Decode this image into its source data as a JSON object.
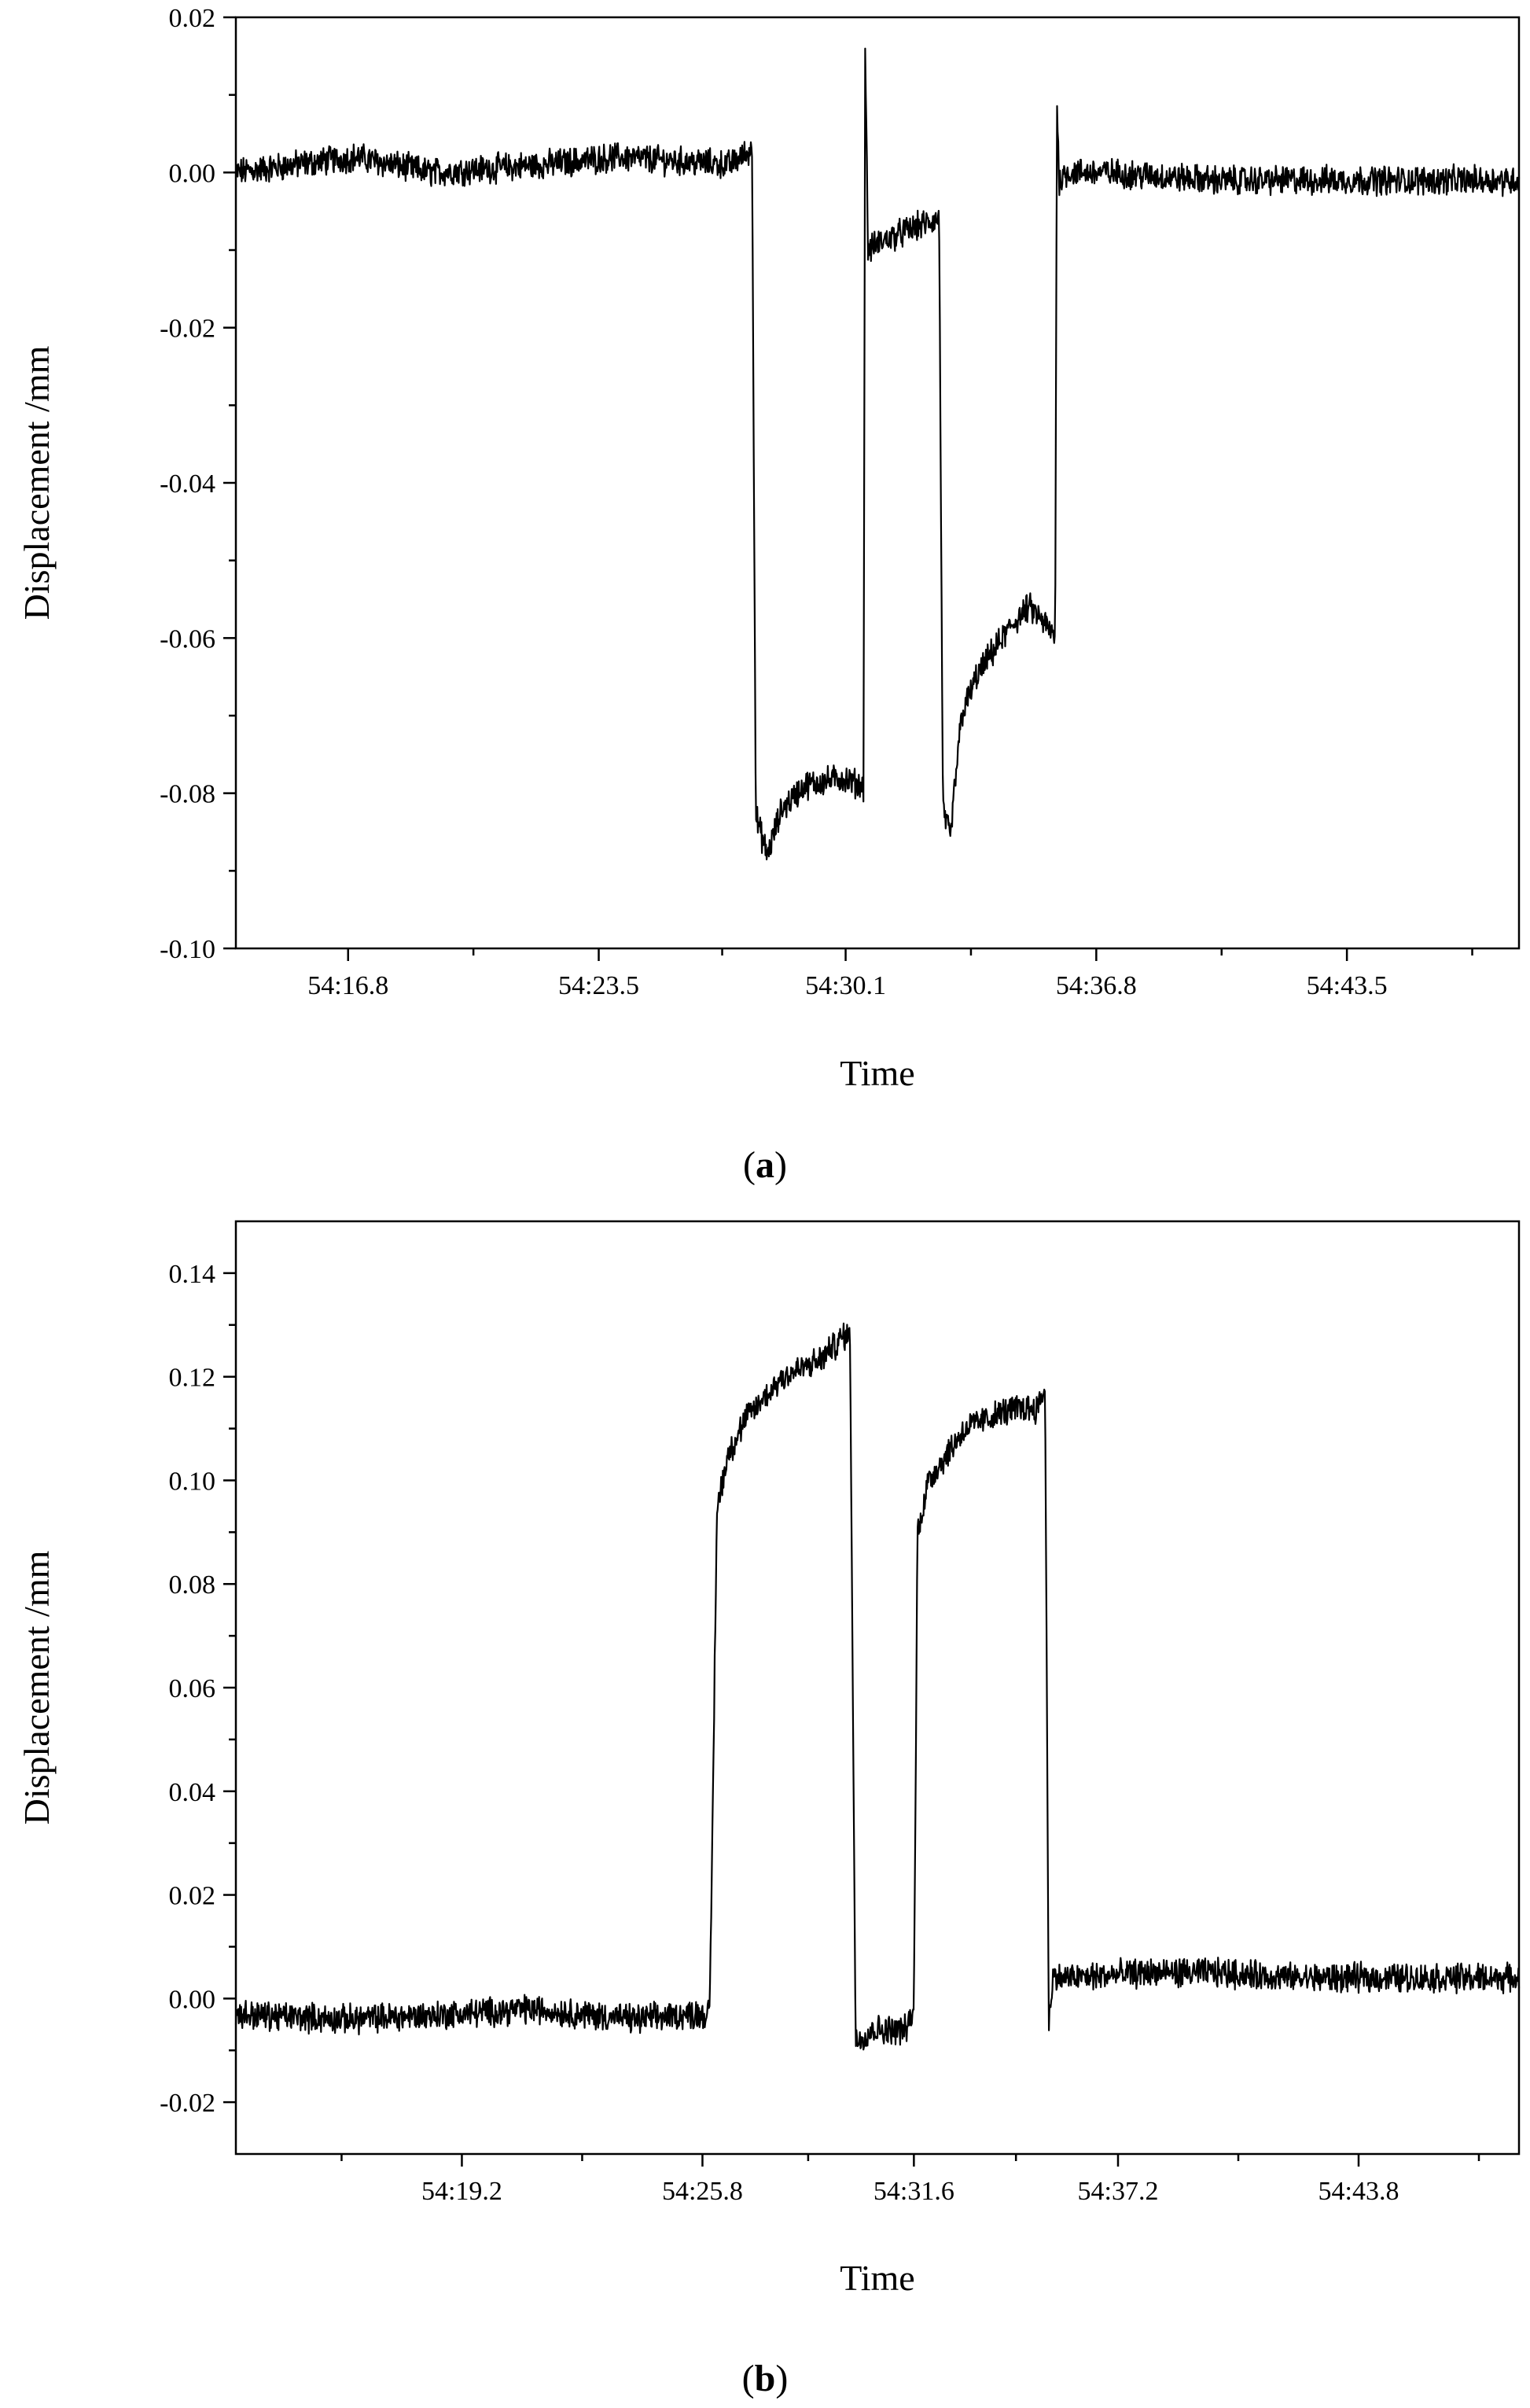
{
  "chart_data": [
    {
      "type": "line",
      "panel_label": "a",
      "xlabel": "Time",
      "ylabel": "Displacement /mm",
      "x_tick_labels": [
        "54:16.8",
        "54:23.5",
        "54:30.1",
        "54:36.8",
        "54:43.5"
      ],
      "x_tick_seconds": [
        16.8,
        23.5,
        30.1,
        36.8,
        43.5
      ],
      "xlim": [
        13.8,
        48.1
      ],
      "ylim": [
        -0.1,
        0.02
      ],
      "y_ticks": [
        0.02,
        0.0,
        -0.02,
        -0.04,
        -0.06,
        -0.08,
        -0.1
      ],
      "y_tick_labels": [
        "0.02",
        "0.00",
        "-0.02",
        "-0.04",
        "-0.06",
        "-0.08",
        "-0.10"
      ],
      "grid": false,
      "color": "#000000",
      "series": [
        {
          "x": [
            13.8,
            17.0,
            19.0,
            22.0,
            24.0,
            27.0,
            27.6,
            27.7,
            28.0,
            28.4,
            29.0,
            30.0,
            30.5,
            30.58,
            30.62,
            30.7,
            31.0,
            32.0,
            32.6,
            32.7,
            32.9,
            33.0,
            33.2,
            33.6,
            34.0,
            34.6,
            35.0,
            35.4,
            35.7,
            35.75,
            35.8,
            36.0,
            37.0,
            40.0,
            42.0,
            45.0,
            48.1
          ],
          "y": [
            0.0,
            0.002,
            0.0,
            0.001,
            0.002,
            0.001,
            0.003,
            -0.083,
            -0.088,
            -0.082,
            -0.079,
            -0.078,
            -0.079,
            -0.079,
            0.017,
            -0.01,
            -0.009,
            -0.007,
            -0.006,
            -0.082,
            -0.086,
            -0.08,
            -0.07,
            -0.065,
            -0.062,
            -0.058,
            -0.056,
            -0.058,
            -0.06,
            0.01,
            -0.001,
            0.0,
            0.0,
            -0.001,
            -0.001,
            -0.001,
            -0.001
          ]
        }
      ]
    },
    {
      "type": "line",
      "panel_label": "b",
      "xlabel": "Time",
      "ylabel": "Displacement /mm",
      "x_tick_labels": [
        "54:19.2",
        "54:25.8",
        "54:31.6",
        "54:37.2",
        "54:43.8"
      ],
      "x_tick_seconds": [
        19.2,
        25.8,
        31.6,
        37.2,
        43.8
      ],
      "xlim": [
        13.0,
        48.2
      ],
      "ylim": [
        -0.03,
        0.15
      ],
      "y_ticks": [
        0.14,
        0.12,
        0.1,
        0.08,
        0.06,
        0.04,
        0.02,
        0.0,
        -0.02
      ],
      "y_tick_labels": [
        "0.14",
        "0.12",
        "0.10",
        "0.08",
        "0.06",
        "0.04",
        "0.02",
        "0.00",
        "-0.02"
      ],
      "grid": false,
      "color": "#000000",
      "series": [
        {
          "x": [
            13.0,
            16.0,
            19.0,
            21.0,
            24.0,
            25.5,
            26.0,
            26.2,
            26.5,
            27.0,
            28.0,
            29.0,
            29.7,
            29.85,
            30.0,
            30.5,
            31.4,
            31.6,
            31.7,
            32.0,
            32.5,
            33.0,
            34.0,
            34.5,
            35.0,
            35.2,
            35.3,
            35.4,
            36.0,
            38.0,
            40.0,
            42.0,
            45.0,
            48.2
          ],
          "y": [
            -0.003,
            -0.004,
            -0.003,
            -0.002,
            -0.004,
            -0.003,
            -0.003,
            0.095,
            0.105,
            0.112,
            0.12,
            0.123,
            0.128,
            0.128,
            -0.008,
            -0.006,
            -0.006,
            -0.002,
            0.09,
            0.1,
            0.105,
            0.11,
            0.113,
            0.114,
            0.114,
            0.118,
            -0.005,
            0.004,
            0.004,
            0.005,
            0.005,
            0.004,
            0.004,
            0.004
          ]
        }
      ]
    }
  ]
}
